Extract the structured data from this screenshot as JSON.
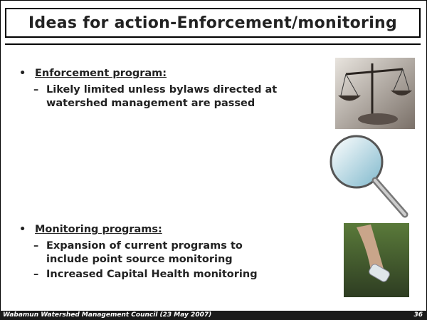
{
  "header": {
    "title": "Ideas for action-Enforcement/monitoring"
  },
  "sections": [
    {
      "heading": "Enforcement program:",
      "items": [
        "Likely limited unless bylaws directed at watershed management are passed"
      ]
    },
    {
      "heading": "Monitoring programs:",
      "items": [
        "Expansion of current programs to include point source monitoring",
        "Increased Capital Health monitoring"
      ]
    }
  ],
  "footer": {
    "text": "Wabamun Watershed Management Council (23 May 2007)",
    "page": "36"
  }
}
